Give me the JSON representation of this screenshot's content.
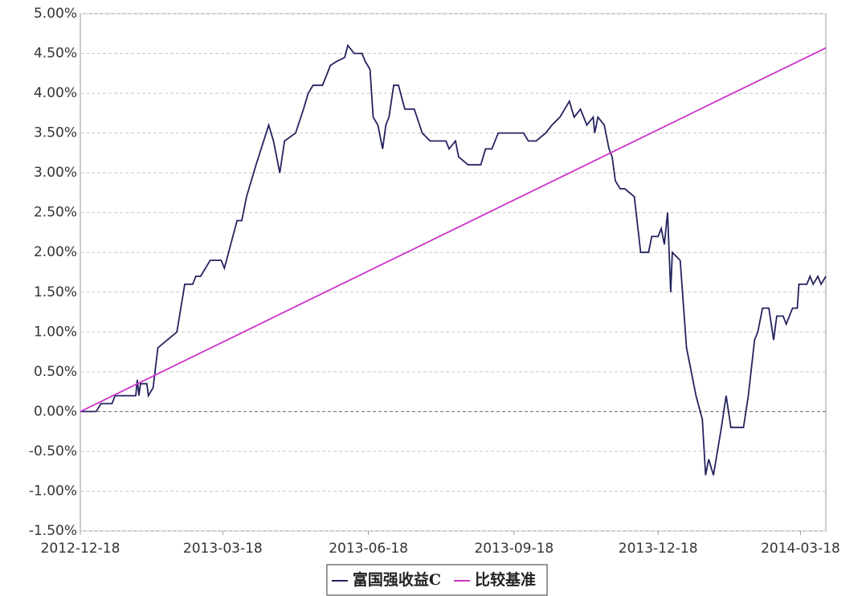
{
  "chart_data": {
    "type": "line",
    "xlim": [
      "2012-12-18",
      "2014-04-03"
    ],
    "xticks": [
      "2012-12-18",
      "2013-03-18",
      "2013-06-18",
      "2013-09-18",
      "2013-12-18",
      "2014-03-18"
    ],
    "ylim": [
      -1.5,
      5
    ],
    "yticks": [
      {
        "value": -1.5,
        "label": "-1.50%"
      },
      {
        "value": -1,
        "label": "-1.00%"
      },
      {
        "value": -0.5,
        "label": "-0.50%"
      },
      {
        "value": 0,
        "label": "0.00%"
      },
      {
        "value": 0.5,
        "label": "0.50%"
      },
      {
        "value": 1,
        "label": "1.00%"
      },
      {
        "value": 1.5,
        "label": "1.50%"
      },
      {
        "value": 2,
        "label": "2.00%"
      },
      {
        "value": 2.5,
        "label": "2.50%"
      },
      {
        "value": 3,
        "label": "3.00%"
      },
      {
        "value": 3.5,
        "label": "3.50%"
      },
      {
        "value": 4,
        "label": "4.00%"
      },
      {
        "value": 4.5,
        "label": "4.50%"
      },
      {
        "value": 5,
        "label": "5.00%"
      }
    ],
    "grid": true,
    "legend": "bottom",
    "series": [
      {
        "name": "富国强收益C",
        "color": "#23235f",
        "x": [
          "2012-12-18",
          "2012-12-28",
          "2012-12-31",
          "2013-01-07",
          "2013-01-09",
          "2013-01-22",
          "2013-01-23",
          "2013-01-24",
          "2013-01-25",
          "2013-01-29",
          "2013-01-30",
          "2013-02-02",
          "2013-02-05",
          "2013-02-17",
          "2013-02-22",
          "2013-02-27",
          "2013-03-01",
          "2013-03-04",
          "2013-03-07",
          "2013-03-10",
          "2013-03-17",
          "2013-03-19",
          "2013-03-23",
          "2013-03-27",
          "2013-03-30",
          "2013-04-02",
          "2013-04-08",
          "2013-04-16",
          "2013-04-19",
          "2013-04-23",
          "2013-04-26",
          "2013-05-03",
          "2013-05-08",
          "2013-05-11",
          "2013-05-14",
          "2013-05-20",
          "2013-05-25",
          "2013-05-29",
          "2013-06-03",
          "2013-06-05",
          "2013-06-09",
          "2013-06-14",
          "2013-06-16",
          "2013-06-19",
          "2013-06-21",
          "2013-06-24",
          "2013-06-27",
          "2013-06-29",
          "2013-07-01",
          "2013-07-04",
          "2013-07-07",
          "2013-07-11",
          "2013-07-17",
          "2013-07-22",
          "2013-07-27",
          "2013-08-06",
          "2013-08-08",
          "2013-08-12",
          "2013-08-14",
          "2013-08-20",
          "2013-08-28",
          "2013-08-31",
          "2013-09-04",
          "2013-09-08",
          "2013-09-24",
          "2013-09-27",
          "2013-10-02",
          "2013-10-08",
          "2013-10-12",
          "2013-10-17",
          "2013-10-20",
          "2013-10-23",
          "2013-10-26",
          "2013-10-30",
          "2013-11-03",
          "2013-11-07",
          "2013-11-08",
          "2013-11-10",
          "2013-11-14",
          "2013-11-17",
          "2013-11-19",
          "2013-11-21",
          "2013-11-24",
          "2013-11-27",
          "2013-12-03",
          "2013-12-07",
          "2013-12-12",
          "2013-12-14",
          "2013-12-18",
          "2013-12-20",
          "2013-12-22",
          "2013-12-24",
          "2013-12-26",
          "2013-12-27",
          "2014-01-01",
          "2014-01-05",
          "2014-01-11",
          "2014-01-15",
          "2014-01-17",
          "2014-01-19",
          "2014-01-22",
          "2014-01-27",
          "2014-01-30",
          "2014-02-02",
          "2014-02-10",
          "2014-02-13",
          "2014-02-17",
          "2014-02-19",
          "2014-02-22",
          "2014-02-26",
          "2014-03-01",
          "2014-03-03",
          "2014-03-07",
          "2014-03-09",
          "2014-03-13",
          "2014-03-16",
          "2014-03-17",
          "2014-03-22",
          "2014-03-24",
          "2014-03-26",
          "2014-03-29",
          "2014-03-31",
          "2014-04-03"
        ],
        "values": [
          0,
          0,
          0.1,
          0.1,
          0.2,
          0.2,
          0.4,
          0.2,
          0.35,
          0.35,
          0.2,
          0.3,
          0.8,
          1.0,
          1.6,
          1.6,
          1.7,
          1.7,
          1.8,
          1.9,
          1.9,
          1.8,
          2.1,
          2.4,
          2.4,
          2.7,
          3.1,
          3.6,
          3.4,
          3.0,
          3.4,
          3.5,
          3.8,
          4.0,
          4.1,
          4.1,
          4.35,
          4.4,
          4.45,
          4.6,
          4.5,
          4.5,
          4.4,
          4.3,
          3.7,
          3.6,
          3.3,
          3.6,
          3.7,
          4.1,
          4.1,
          3.8,
          3.8,
          3.5,
          3.4,
          3.4,
          3.3,
          3.4,
          3.2,
          3.1,
          3.1,
          3.3,
          3.3,
          3.5,
          3.5,
          3.4,
          3.4,
          3.5,
          3.6,
          3.7,
          3.8,
          3.9,
          3.7,
          3.8,
          3.6,
          3.7,
          3.5,
          3.7,
          3.6,
          3.3,
          3.2,
          2.9,
          2.8,
          2.8,
          2.7,
          2.0,
          2.0,
          2.2,
          2.2,
          2.3,
          2.1,
          2.5,
          1.5,
          2.0,
          1.9,
          0.8,
          0.2,
          -0.1,
          -0.8,
          -0.6,
          -0.8,
          -0.2,
          0.2,
          -0.2,
          -0.2,
          0.2,
          0.9,
          1.0,
          1.3,
          1.3,
          0.9,
          1.2,
          1.2,
          1.1,
          1.3,
          1.3,
          1.6,
          1.6,
          1.7,
          1.6,
          1.7,
          1.6,
          1.7
        ]
      },
      {
        "name": "比较基准",
        "color": "#cc33cc",
        "x": [
          "2012-12-18",
          "2014-04-03"
        ],
        "values": [
          0,
          4.57
        ]
      }
    ]
  }
}
